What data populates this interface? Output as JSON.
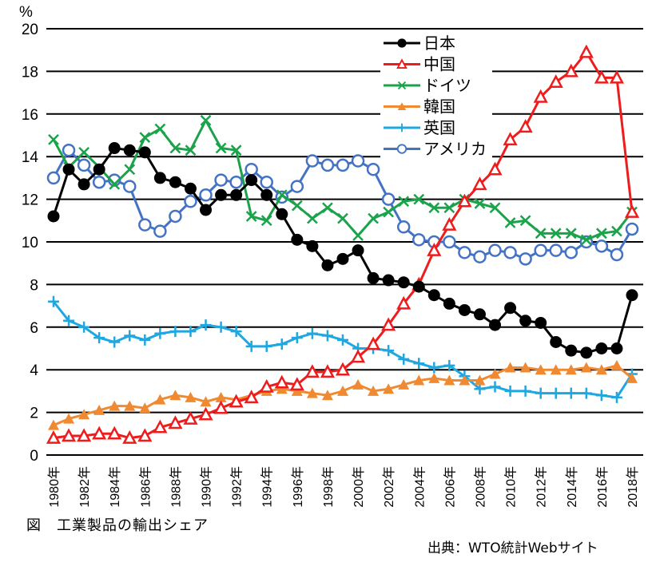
{
  "chart_data": {
    "type": "line",
    "title": "",
    "unit_label": "%",
    "xlabel": "",
    "ylabel": "%",
    "ylim": [
      0,
      20
    ],
    "yticks": [
      0,
      2,
      4,
      6,
      8,
      10,
      12,
      14,
      16,
      18,
      20
    ],
    "grid": true,
    "legend_position": "top-center-right",
    "x": [
      1980,
      1981,
      1982,
      1983,
      1984,
      1985,
      1986,
      1987,
      1988,
      1989,
      1990,
      1991,
      1992,
      1993,
      1994,
      1995,
      1996,
      1997,
      1998,
      1999,
      2000,
      2001,
      2002,
      2003,
      2004,
      2005,
      2006,
      2007,
      2008,
      2009,
      2010,
      2011,
      2012,
      2013,
      2014,
      2015,
      2016,
      2017,
      2018
    ],
    "xtick_labels": [
      "1980年",
      "1982年",
      "1984年",
      "1986年",
      "1988年",
      "1990年",
      "1992年",
      "1994年",
      "1996年",
      "1998年",
      "2000年",
      "2002年",
      "2004年",
      "2006年",
      "2008年",
      "2010年",
      "2012年",
      "2014年",
      "2016年",
      "2018年"
    ],
    "series": [
      {
        "name": "日本",
        "color": "#000000",
        "marker": "filled-circle",
        "values": [
          11.2,
          13.4,
          12.7,
          13.4,
          14.4,
          14.3,
          14.2,
          13.0,
          12.8,
          12.5,
          11.5,
          12.2,
          12.2,
          12.9,
          12.2,
          11.3,
          10.1,
          9.8,
          8.9,
          9.2,
          9.6,
          8.3,
          8.2,
          8.1,
          7.9,
          7.5,
          7.1,
          6.8,
          6.6,
          6.1,
          6.9,
          6.3,
          6.2,
          5.3,
          4.9,
          4.8,
          5.0,
          5.0,
          7.5
        ]
      },
      {
        "name": "中国",
        "color": "#ee1c1c",
        "marker": "open-triangle",
        "values": [
          0.8,
          0.9,
          0.9,
          1.0,
          1.0,
          0.8,
          0.9,
          1.3,
          1.5,
          1.7,
          1.9,
          2.2,
          2.5,
          2.7,
          3.2,
          3.4,
          3.3,
          3.9,
          3.9,
          4.0,
          4.6,
          5.2,
          6.1,
          7.1,
          8.0,
          9.6,
          10.8,
          11.9,
          12.7,
          13.4,
          14.8,
          15.4,
          16.8,
          17.5,
          18.0,
          18.9,
          17.7,
          17.7,
          11.4
        ]
      },
      {
        "name": "ドイツ",
        "color": "#1aa34a",
        "marker": "x-cross",
        "values": [
          14.8,
          13.5,
          14.2,
          13.5,
          12.7,
          13.4,
          14.9,
          15.3,
          14.4,
          14.3,
          15.7,
          14.4,
          14.3,
          11.2,
          11.0,
          12.2,
          11.7,
          11.1,
          11.6,
          11.1,
          10.3,
          11.1,
          11.4,
          11.9,
          12.0,
          11.6,
          11.6,
          12.0,
          11.8,
          11.6,
          10.9,
          11.0,
          10.4,
          10.4,
          10.4,
          10.1,
          10.4,
          10.5,
          11.4
        ]
      },
      {
        "name": "韓国",
        "color": "#f08a32",
        "marker": "filled-triangle",
        "values": [
          1.4,
          1.7,
          1.9,
          2.1,
          2.3,
          2.3,
          2.2,
          2.6,
          2.8,
          2.7,
          2.5,
          2.7,
          2.6,
          2.8,
          3.0,
          3.1,
          3.0,
          2.9,
          2.8,
          3.0,
          3.3,
          3.0,
          3.1,
          3.3,
          3.5,
          3.6,
          3.5,
          3.5,
          3.5,
          3.8,
          4.1,
          4.1,
          4.0,
          4.0,
          4.0,
          4.1,
          4.0,
          4.2,
          3.6
        ]
      },
      {
        "name": "英国",
        "color": "#1ea7e1",
        "marker": "plus",
        "values": [
          7.2,
          6.3,
          6.0,
          5.5,
          5.3,
          5.6,
          5.4,
          5.7,
          5.8,
          5.8,
          6.1,
          6.0,
          5.8,
          5.1,
          5.1,
          5.2,
          5.5,
          5.7,
          5.6,
          5.4,
          5.0,
          5.0,
          4.9,
          4.5,
          4.3,
          4.1,
          4.2,
          3.7,
          3.1,
          3.2,
          3.0,
          3.0,
          2.9,
          2.9,
          2.9,
          2.9,
          2.8,
          2.7,
          3.8
        ]
      },
      {
        "name": "アメリカ",
        "color": "#4472c4",
        "marker": "open-circle",
        "values": [
          13.0,
          14.3,
          13.6,
          12.8,
          12.9,
          12.6,
          10.8,
          10.5,
          11.2,
          11.9,
          12.2,
          12.9,
          12.8,
          13.4,
          12.8,
          12.1,
          12.6,
          13.8,
          13.6,
          13.6,
          13.8,
          13.4,
          12.0,
          10.7,
          10.1,
          10.0,
          10.0,
          9.5,
          9.3,
          9.6,
          9.5,
          9.2,
          9.6,
          9.6,
          9.5,
          10.0,
          9.8,
          9.4,
          10.6
        ]
      }
    ]
  },
  "caption": "図　工業製品の輸出シェア",
  "source": "出典：WTO統計Webサイト"
}
